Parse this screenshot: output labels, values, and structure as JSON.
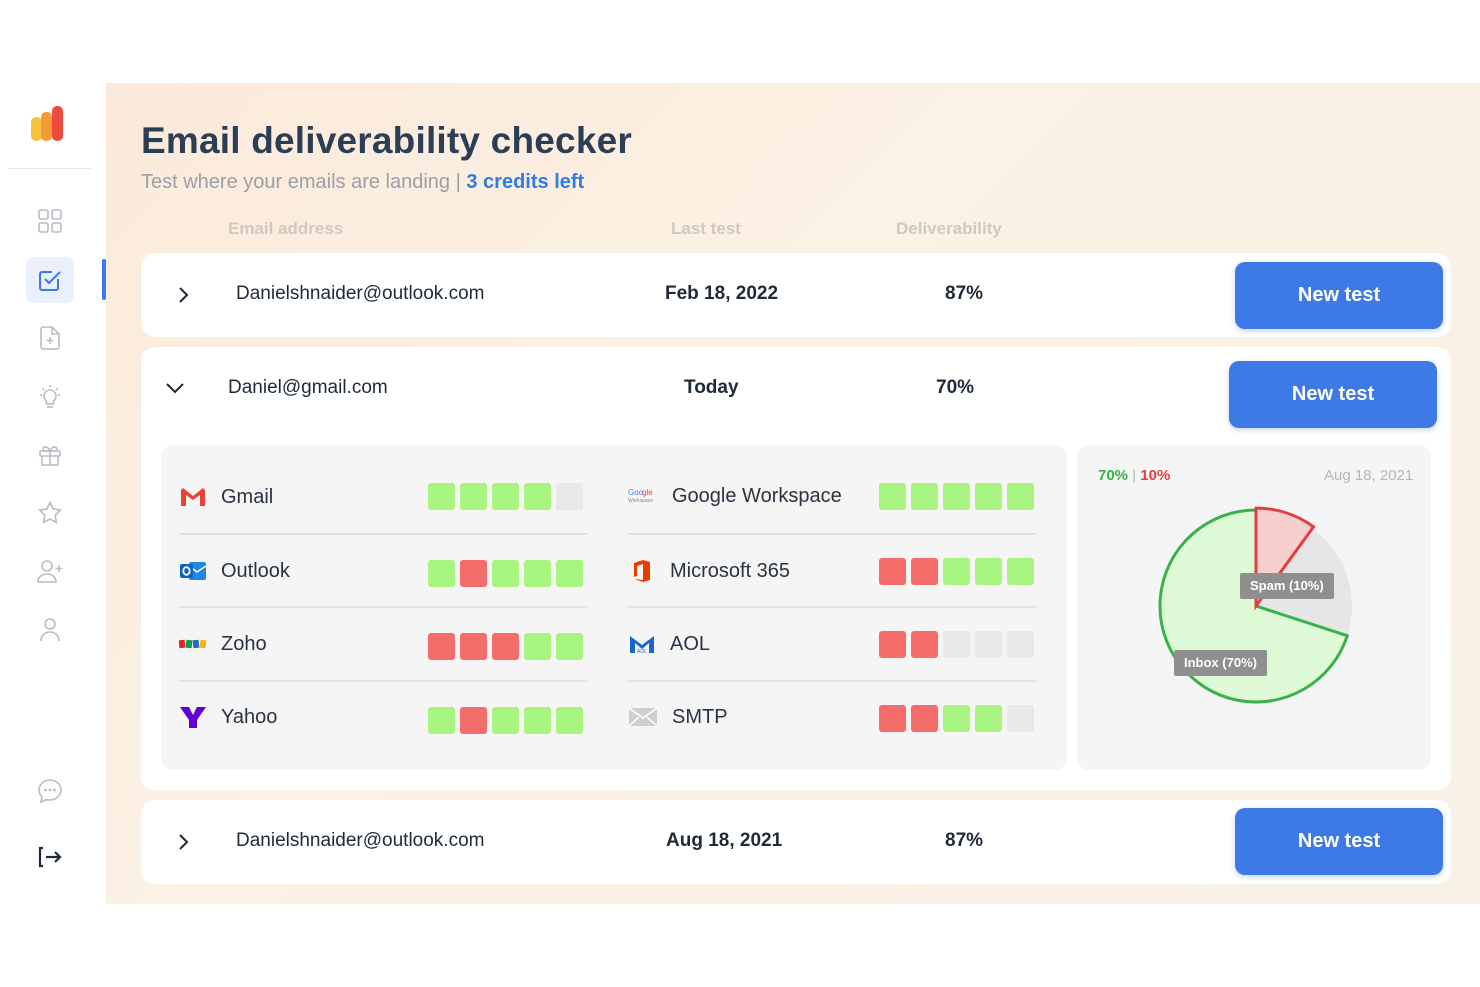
{
  "page": {
    "title": "Email deliverability checker",
    "subtitle": "Test where your emails are landing",
    "subtitle_sep": "|",
    "credits": "3 credits left"
  },
  "columns": {
    "email": "Email address",
    "last_test": "Last test",
    "deliverability": "Deliverability"
  },
  "rows": [
    {
      "email": "Danielshnaider@outlook.com",
      "last_test": "Feb 18, 2022",
      "deliverability": "87%",
      "button": "New test"
    },
    {
      "email": "Daniel@gmail.com",
      "last_test": "Today",
      "deliverability": "70%",
      "button": "New test"
    },
    {
      "email": "Danielshnaider@outlook.com",
      "last_test": "Aug 18, 2021",
      "deliverability": "87%",
      "button": "New test"
    }
  ],
  "providers": [
    {
      "name": "Gmail",
      "icon": "gmail-icon",
      "scores": [
        "g",
        "g",
        "g",
        "g",
        "e"
      ]
    },
    {
      "name": "Google Workspace",
      "icon": "google-workspace-icon",
      "scores": [
        "g",
        "g",
        "g",
        "g",
        "g"
      ]
    },
    {
      "name": "Outlook",
      "icon": "outlook-icon",
      "scores": [
        "g",
        "r",
        "g",
        "g",
        "g"
      ]
    },
    {
      "name": "Microsoft 365",
      "icon": "microsoft-365-icon",
      "scores": [
        "r",
        "r",
        "g",
        "g",
        "g"
      ]
    },
    {
      "name": "Zoho",
      "icon": "zoho-icon",
      "scores": [
        "r",
        "r",
        "r",
        "g",
        "g"
      ]
    },
    {
      "name": "AOL",
      "icon": "aol-icon",
      "scores": [
        "r",
        "r",
        "e",
        "e",
        "e"
      ]
    },
    {
      "name": "Yahoo",
      "icon": "yahoo-icon",
      "scores": [
        "g",
        "r",
        "g",
        "g",
        "g"
      ]
    },
    {
      "name": "SMTP",
      "icon": "smtp-icon",
      "scores": [
        "r",
        "r",
        "g",
        "g",
        "e"
      ]
    }
  ],
  "chart_data": {
    "type": "pie",
    "inbox_label": "70%",
    "separator": "|",
    "spam_label": "10%",
    "date": "Aug 18, 2021",
    "slices": [
      {
        "label": "Inbox (70%)",
        "value": 70,
        "color": "#38b34a"
      },
      {
        "label": "Spam (10%)",
        "value": 10,
        "color": "#e43d3d"
      },
      {
        "label": "",
        "value": 20,
        "color": "#e6e6e6"
      }
    ]
  },
  "colors": {
    "accent": "#3e7ae6",
    "good": "#a7f580",
    "bad": "#f46d6b",
    "empty": "#e8e8e8"
  },
  "sidebar_icons": [
    "dashboard-icon",
    "checklist-icon",
    "document-add-icon",
    "lightbulb-icon",
    "gift-icon",
    "star-icon",
    "add-user-icon",
    "user-icon",
    "chat-icon",
    "logout-icon"
  ]
}
